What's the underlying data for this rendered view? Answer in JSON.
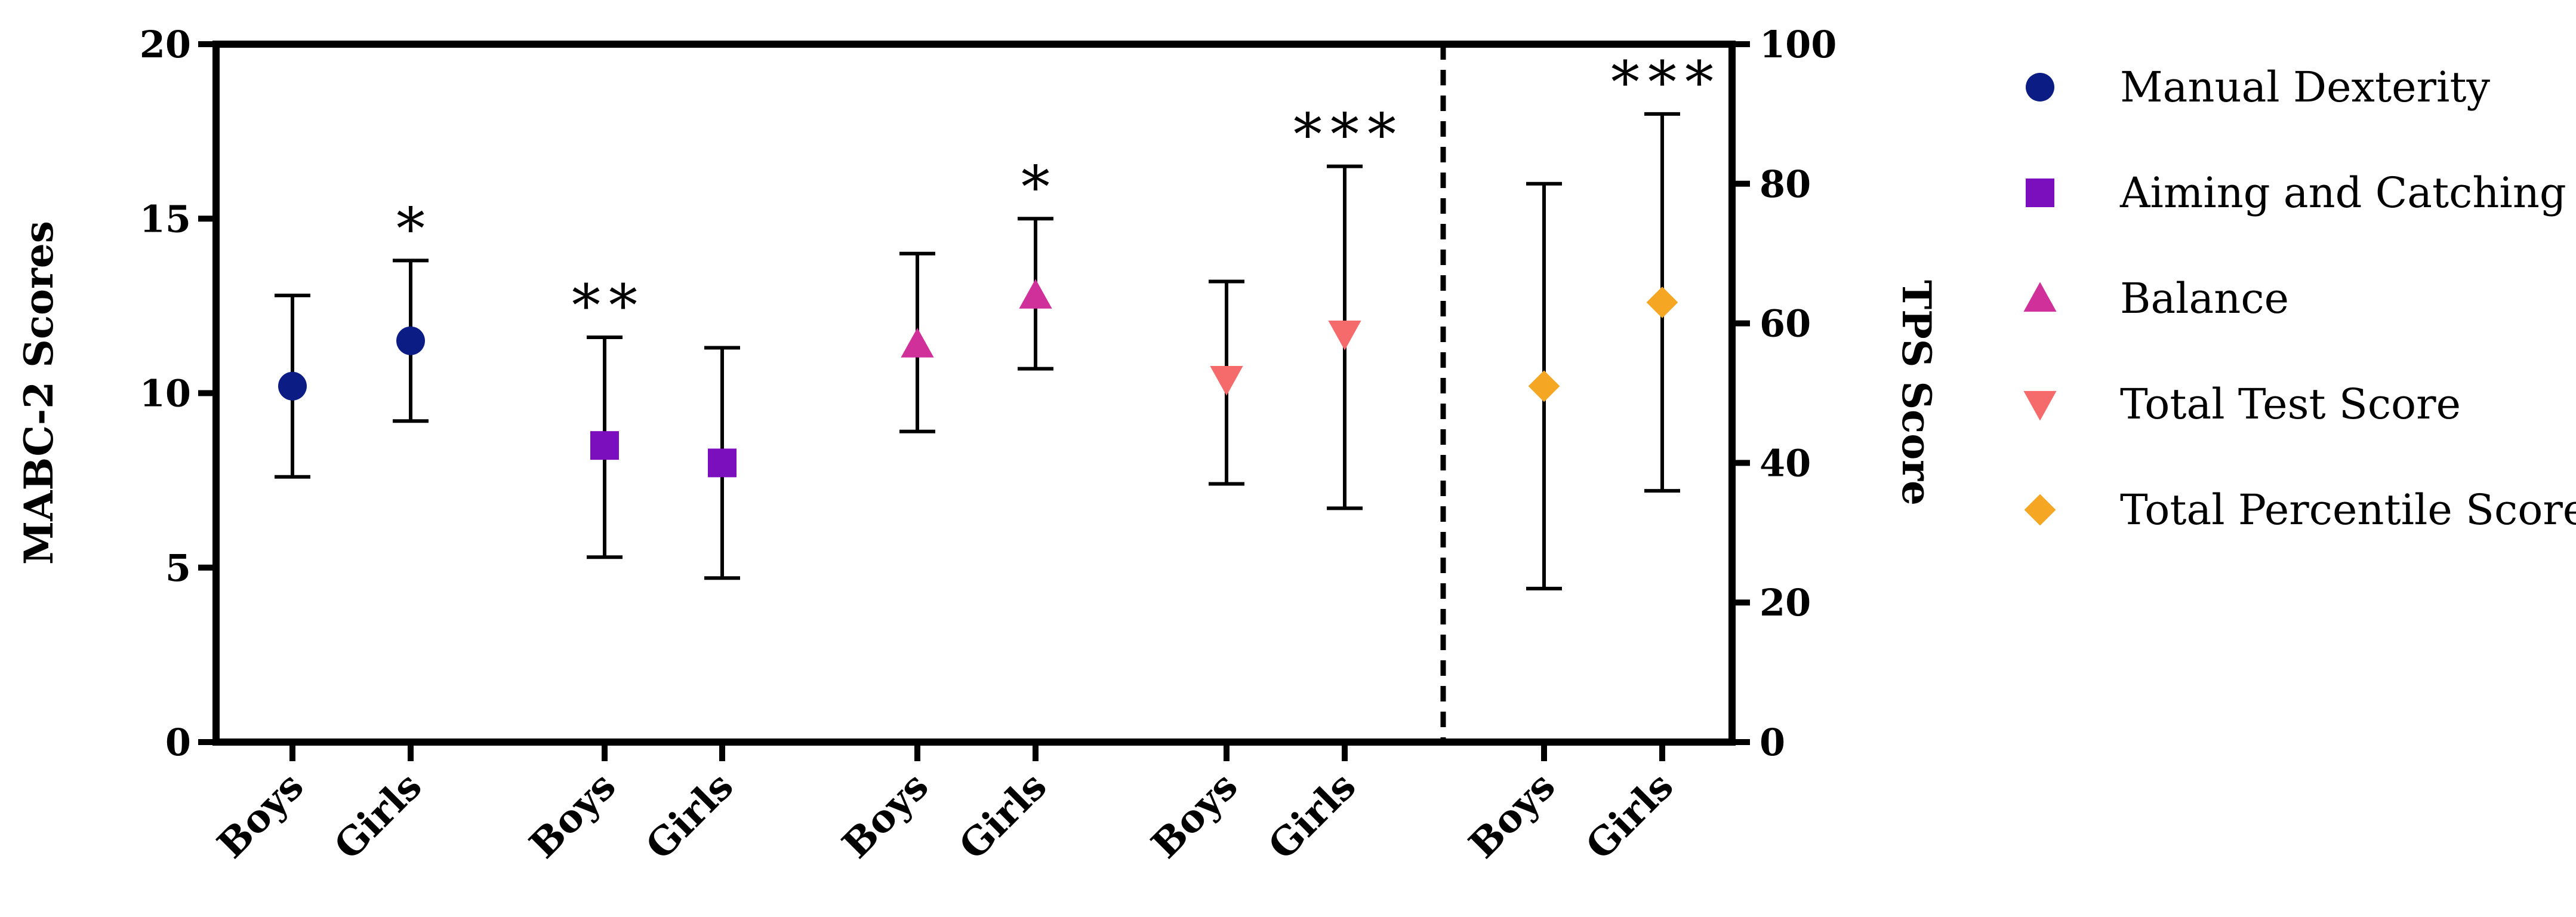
{
  "chart_data": {
    "type": "scatter",
    "left_axis": {
      "title": "MABC-2 Scores",
      "range": [
        0,
        20
      ],
      "ticks": [
        0,
        5,
        10,
        15,
        20
      ]
    },
    "right_axis": {
      "title": "TPS Score",
      "range": [
        0,
        100
      ],
      "ticks": [
        0,
        20,
        40,
        60,
        80,
        100
      ]
    },
    "legend": [
      {
        "name": "Manual Dexterity",
        "marker": "circle",
        "color": "#0b1d84"
      },
      {
        "name": "Aiming and Catching",
        "marker": "square",
        "color": "#7b0fbe"
      },
      {
        "name": "Balance",
        "marker": "triangle-up",
        "color": "#d0309a"
      },
      {
        "name": "Total Test Score",
        "marker": "triangle-down",
        "color": "#f56a6a"
      },
      {
        "name": "Total Percentile Score",
        "marker": "diamond",
        "color": "#f5a623"
      }
    ],
    "categories": [
      "Boys",
      "Girls",
      "Boys",
      "Girls",
      "Boys",
      "Girls",
      "Boys",
      "Girls",
      "Boys",
      "Girls"
    ],
    "points": [
      {
        "series": "Manual Dexterity",
        "group": "Boys",
        "axis": "left",
        "value": 10.2,
        "err_low": 7.6,
        "err_high": 12.8,
        "sig": ""
      },
      {
        "series": "Manual Dexterity",
        "group": "Girls",
        "axis": "left",
        "value": 11.5,
        "err_low": 9.2,
        "err_high": 13.8,
        "sig": "*"
      },
      {
        "series": "Aiming and Catching",
        "group": "Boys",
        "axis": "left",
        "value": 8.5,
        "err_low": 5.3,
        "err_high": 11.6,
        "sig": "**"
      },
      {
        "series": "Aiming and Catching",
        "group": "Girls",
        "axis": "left",
        "value": 8.0,
        "err_low": 4.7,
        "err_high": 11.3,
        "sig": ""
      },
      {
        "series": "Balance",
        "group": "Boys",
        "axis": "left",
        "value": 11.4,
        "err_low": 8.9,
        "err_high": 14.0,
        "sig": ""
      },
      {
        "series": "Balance",
        "group": "Girls",
        "axis": "left",
        "value": 12.8,
        "err_low": 10.7,
        "err_high": 15.0,
        "sig": "*"
      },
      {
        "series": "Total Test Score",
        "group": "Boys",
        "axis": "left",
        "value": 10.4,
        "err_low": 7.4,
        "err_high": 13.2,
        "sig": ""
      },
      {
        "series": "Total Test Score",
        "group": "Girls",
        "axis": "left",
        "value": 11.7,
        "err_low": 6.7,
        "err_high": 16.5,
        "sig": "***"
      },
      {
        "series": "Total Percentile Score",
        "group": "Boys",
        "axis": "right",
        "value": 51,
        "err_low": 22,
        "err_high": 80,
        "sig": ""
      },
      {
        "series": "Total Percentile Score",
        "group": "Girls",
        "axis": "right",
        "value": 63,
        "err_low": 36,
        "err_high": 90,
        "sig": "***"
      }
    ]
  }
}
